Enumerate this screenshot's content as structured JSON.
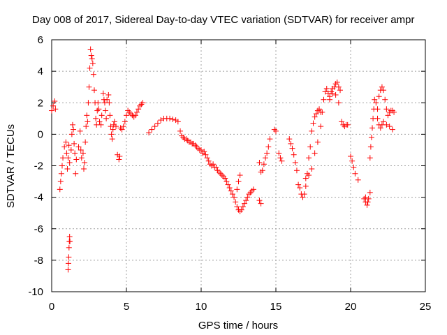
{
  "chart_data": {
    "type": "scatter",
    "title": "Day 008 of 2017, Sidereal Day-to-day VTEC variation (SDTVAR) for receiver ampr",
    "xlabel": "GPS time / hours",
    "ylabel": "SDTVAR / TECUs",
    "xlim": [
      0,
      25
    ],
    "ylim": [
      -10,
      6
    ],
    "xticks": [
      0,
      5,
      10,
      15,
      20,
      25
    ],
    "yticks": [
      -10,
      -8,
      -6,
      -4,
      -2,
      0,
      2,
      4,
      6
    ],
    "xtick_labels": [
      "0",
      "5",
      "10",
      "15",
      "20",
      "25"
    ],
    "ytick_labels": [
      "-10",
      "-8",
      "-6",
      "-4",
      "-2",
      "0",
      "2",
      "4",
      "6"
    ],
    "grid": true,
    "marker": "plus",
    "color": "#ff0000",
    "series": [
      {
        "name": "SDTVAR",
        "points": [
          [
            0.0,
            1.5
          ],
          [
            0.1,
            1.8
          ],
          [
            0.2,
            2.1
          ],
          [
            0.25,
            1.6
          ],
          [
            0.55,
            -3.5
          ],
          [
            0.6,
            -3.0
          ],
          [
            0.65,
            -2.5
          ],
          [
            0.7,
            -2.0
          ],
          [
            0.75,
            -1.5
          ],
          [
            0.85,
            -0.8
          ],
          [
            0.95,
            -0.5
          ],
          [
            1.0,
            -1.2
          ],
          [
            1.05,
            -2.2
          ],
          [
            1.1,
            -1.5
          ],
          [
            1.15,
            -0.7
          ],
          [
            1.2,
            -1.8
          ],
          [
            1.3,
            -1.0
          ],
          [
            1.35,
            0.0
          ],
          [
            1.4,
            0.6
          ],
          [
            1.45,
            0.3
          ],
          [
            1.5,
            -0.6
          ],
          [
            1.55,
            -1.2
          ],
          [
            1.6,
            -2.5
          ],
          [
            1.65,
            -1.6
          ],
          [
            1.1,
            -8.6
          ],
          [
            1.12,
            -8.2
          ],
          [
            1.14,
            -7.8
          ],
          [
            1.16,
            -7.2
          ],
          [
            1.18,
            -6.8
          ],
          [
            1.2,
            -6.5
          ],
          [
            1.22,
            -6.8
          ],
          [
            1.8,
            -0.8
          ],
          [
            1.9,
            0.2
          ],
          [
            1.95,
            -1.0
          ],
          [
            2.0,
            -1.5
          ],
          [
            2.1,
            -1.2
          ],
          [
            2.15,
            -2.2
          ],
          [
            2.2,
            -1.8
          ],
          [
            2.25,
            -0.5
          ],
          [
            2.3,
            0.5
          ],
          [
            2.35,
            1.2
          ],
          [
            2.4,
            0.8
          ],
          [
            2.45,
            2.0
          ],
          [
            2.5,
            3.0
          ],
          [
            2.55,
            4.2
          ],
          [
            2.6,
            5.4
          ],
          [
            2.65,
            5.0
          ],
          [
            2.7,
            4.8
          ],
          [
            2.75,
            4.5
          ],
          [
            2.8,
            3.8
          ],
          [
            2.85,
            2.8
          ],
          [
            2.9,
            2.0
          ],
          [
            2.95,
            1.0
          ],
          [
            3.0,
            0.6
          ],
          [
            3.05,
            1.5
          ],
          [
            3.1,
            2.0
          ],
          [
            3.15,
            1.6
          ],
          [
            3.2,
            0.8
          ],
          [
            3.3,
            0.6
          ],
          [
            3.35,
            1.2
          ],
          [
            3.45,
            2.6
          ],
          [
            3.5,
            2.2
          ],
          [
            3.55,
            2.0
          ],
          [
            3.6,
            1.5
          ],
          [
            3.65,
            1.0
          ],
          [
            3.7,
            2.2
          ],
          [
            3.8,
            2.5
          ],
          [
            3.85,
            2.0
          ],
          [
            3.9,
            1.2
          ],
          [
            3.95,
            0.5
          ],
          [
            4.0,
            0.0
          ],
          [
            4.05,
            -0.3
          ],
          [
            4.1,
            0.3
          ],
          [
            4.15,
            0.6
          ],
          [
            4.2,
            0.8
          ],
          [
            4.3,
            0.5
          ],
          [
            4.4,
            -1.3
          ],
          [
            4.5,
            -1.6
          ],
          [
            4.55,
            -1.4
          ],
          [
            4.6,
            0.4
          ],
          [
            4.7,
            0.3
          ],
          [
            4.8,
            0.5
          ],
          [
            4.9,
            0.8
          ],
          [
            5.0,
            1.2
          ],
          [
            5.1,
            1.5
          ],
          [
            5.2,
            1.4
          ],
          [
            5.3,
            1.3
          ],
          [
            5.4,
            1.2
          ],
          [
            5.5,
            1.1
          ],
          [
            5.6,
            1.2
          ],
          [
            5.7,
            1.4
          ],
          [
            5.8,
            1.6
          ],
          [
            5.9,
            1.8
          ],
          [
            6.0,
            1.9
          ],
          [
            6.1,
            2.0
          ],
          [
            6.5,
            0.1
          ],
          [
            6.7,
            0.3
          ],
          [
            6.9,
            0.5
          ],
          [
            7.1,
            0.7
          ],
          [
            7.3,
            0.9
          ],
          [
            7.5,
            1.0
          ],
          [
            7.7,
            1.0
          ],
          [
            7.9,
            1.0
          ],
          [
            8.1,
            0.95
          ],
          [
            8.3,
            0.9
          ],
          [
            8.45,
            0.8
          ],
          [
            8.6,
            0.2
          ],
          [
            8.7,
            -0.1
          ],
          [
            8.8,
            -0.2
          ],
          [
            8.9,
            -0.3
          ],
          [
            9.0,
            -0.3
          ],
          [
            9.1,
            -0.4
          ],
          [
            9.2,
            -0.5
          ],
          [
            9.3,
            -0.5
          ],
          [
            9.4,
            -0.6
          ],
          [
            9.5,
            -0.6
          ],
          [
            9.6,
            -0.7
          ],
          [
            9.7,
            -0.8
          ],
          [
            9.8,
            -0.9
          ],
          [
            9.9,
            -1.0
          ],
          [
            10.0,
            -1.0
          ],
          [
            10.1,
            -1.2
          ],
          [
            10.2,
            -1.1
          ],
          [
            10.3,
            -1.3
          ],
          [
            10.4,
            -1.5
          ],
          [
            10.5,
            -1.7
          ],
          [
            10.6,
            -1.9
          ],
          [
            10.7,
            -2.0
          ],
          [
            10.8,
            -1.9
          ],
          [
            10.9,
            -2.1
          ],
          [
            11.0,
            -2.1
          ],
          [
            11.1,
            -2.3
          ],
          [
            11.2,
            -2.4
          ],
          [
            11.3,
            -2.5
          ],
          [
            11.4,
            -2.6
          ],
          [
            11.5,
            -2.7
          ],
          [
            11.6,
            -2.8
          ],
          [
            11.7,
            -3.0
          ],
          [
            11.8,
            -3.2
          ],
          [
            11.9,
            -3.4
          ],
          [
            12.0,
            -3.6
          ],
          [
            12.1,
            -3.8
          ],
          [
            12.2,
            -4.0
          ],
          [
            12.3,
            -4.3
          ],
          [
            12.4,
            -4.6
          ],
          [
            12.5,
            -4.8
          ],
          [
            12.6,
            -4.9
          ],
          [
            12.7,
            -4.8
          ],
          [
            12.8,
            -4.6
          ],
          [
            12.9,
            -4.4
          ],
          [
            13.0,
            -4.2
          ],
          [
            13.1,
            -4.0
          ],
          [
            13.2,
            -3.8
          ],
          [
            13.3,
            -3.7
          ],
          [
            13.4,
            -3.6
          ],
          [
            13.5,
            -3.5
          ],
          [
            12.4,
            -3.5
          ],
          [
            12.5,
            -3.0
          ],
          [
            12.6,
            -2.6
          ],
          [
            13.9,
            -4.2
          ],
          [
            14.0,
            -4.4
          ],
          [
            13.9,
            -1.8
          ],
          [
            14.0,
            -2.4
          ],
          [
            14.1,
            -2.3
          ],
          [
            14.2,
            -1.9
          ],
          [
            14.3,
            -1.5
          ],
          [
            14.4,
            -1.2
          ],
          [
            14.5,
            -0.8
          ],
          [
            14.6,
            -0.3
          ],
          [
            14.9,
            0.3
          ],
          [
            15.0,
            0.2
          ],
          [
            15.2,
            -1.2
          ],
          [
            15.3,
            -1.5
          ],
          [
            15.4,
            -1.7
          ],
          [
            15.9,
            -0.3
          ],
          [
            16.0,
            -0.6
          ],
          [
            16.1,
            -0.9
          ],
          [
            16.2,
            -1.3
          ],
          [
            16.3,
            -1.8
          ],
          [
            16.4,
            -2.3
          ],
          [
            16.5,
            -3.2
          ],
          [
            16.6,
            -3.4
          ],
          [
            16.7,
            -3.8
          ],
          [
            16.8,
            -4.0
          ],
          [
            16.9,
            -3.8
          ],
          [
            17.0,
            -3.3
          ],
          [
            17.1,
            -2.5
          ],
          [
            17.2,
            -1.5
          ],
          [
            17.3,
            -0.8
          ],
          [
            17.4,
            0.2
          ],
          [
            17.5,
            0.7
          ],
          [
            17.6,
            1.1
          ],
          [
            17.7,
            1.3
          ],
          [
            17.8,
            1.5
          ],
          [
            17.9,
            1.6
          ],
          [
            18.0,
            1.4
          ],
          [
            17.0,
            -2.8
          ],
          [
            17.2,
            -2.6
          ],
          [
            17.4,
            -2.2
          ],
          [
            17.6,
            -1.2
          ],
          [
            17.8,
            -0.5
          ],
          [
            18.0,
            0.5
          ],
          [
            18.1,
            1.4
          ],
          [
            18.2,
            2.2
          ],
          [
            18.3,
            2.7
          ],
          [
            18.4,
            2.9
          ],
          [
            18.5,
            2.6
          ],
          [
            18.6,
            2.4
          ],
          [
            18.7,
            2.7
          ],
          [
            18.8,
            2.9
          ],
          [
            18.9,
            3.0
          ],
          [
            19.0,
            3.2
          ],
          [
            19.1,
            3.3
          ],
          [
            19.2,
            3.0
          ],
          [
            19.3,
            2.8
          ],
          [
            18.6,
            2.2
          ],
          [
            18.8,
            2.6
          ],
          [
            19.0,
            2.5
          ],
          [
            19.2,
            2.0
          ],
          [
            19.4,
            0.8
          ],
          [
            19.5,
            0.6
          ],
          [
            19.6,
            0.5
          ],
          [
            19.7,
            0.6
          ],
          [
            19.8,
            0.6
          ],
          [
            20.0,
            -1.4
          ],
          [
            20.1,
            -1.7
          ],
          [
            20.2,
            -2.1
          ],
          [
            20.3,
            -2.5
          ],
          [
            20.5,
            -2.9
          ],
          [
            20.9,
            -4.1
          ],
          [
            21.0,
            -4.3
          ],
          [
            21.1,
            -4.5
          ],
          [
            21.2,
            -4.1
          ],
          [
            21.3,
            -3.7
          ],
          [
            21.0,
            -4.0
          ],
          [
            21.15,
            -4.3
          ],
          [
            21.3,
            -1.5
          ],
          [
            21.35,
            -0.8
          ],
          [
            21.4,
            -0.2
          ],
          [
            21.45,
            0.4
          ],
          [
            21.5,
            1.0
          ],
          [
            21.55,
            1.6
          ],
          [
            21.6,
            2.2
          ],
          [
            21.7,
            2.0
          ],
          [
            21.8,
            1.6
          ],
          [
            21.9,
            2.4
          ],
          [
            22.0,
            2.8
          ],
          [
            22.1,
            3.0
          ],
          [
            22.2,
            2.8
          ],
          [
            22.3,
            2.2
          ],
          [
            22.4,
            1.6
          ],
          [
            22.5,
            1.2
          ],
          [
            22.6,
            1.4
          ],
          [
            22.7,
            1.5
          ],
          [
            22.8,
            1.5
          ],
          [
            22.9,
            1.4
          ],
          [
            21.8,
            1.0
          ],
          [
            21.9,
            0.6
          ],
          [
            22.0,
            0.4
          ],
          [
            22.1,
            0.6
          ],
          [
            22.2,
            0.8
          ],
          [
            22.4,
            0.6
          ],
          [
            22.6,
            0.5
          ],
          [
            22.8,
            0.3
          ]
        ]
      }
    ]
  }
}
